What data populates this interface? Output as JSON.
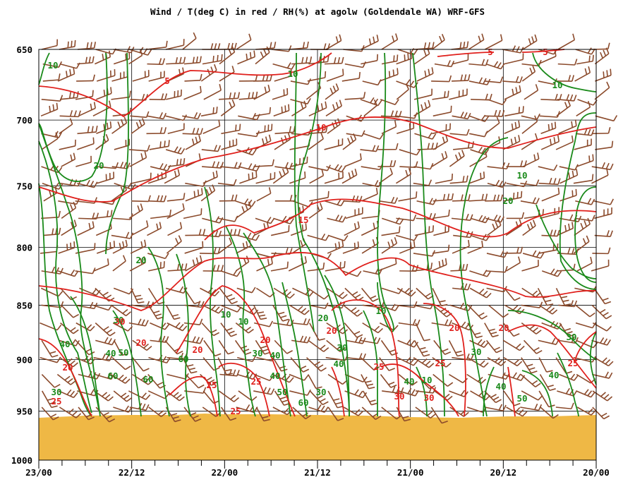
{
  "chart_data": {
    "type": "line",
    "title": "Wind / T(deg C) in red / RH(%) at agolw (Goldendale WA)  WRF-GFS",
    "y_axis": {
      "ticks": [
        "650",
        "700",
        "750",
        "800",
        "850",
        "900",
        "950",
        "1000"
      ],
      "values": [
        650,
        700,
        750,
        800,
        850,
        900,
        950,
        1000
      ],
      "scale": "log-pressure",
      "range": [
        650,
        1000
      ]
    },
    "x_axis": {
      "ticks": [
        "23/00",
        "22/12",
        "22/00",
        "21/12",
        "21/00",
        "20/12",
        "20/00"
      ],
      "gridlines": 6,
      "minor_ticks_per_interval": 4
    },
    "grid": true,
    "surface_fill_color": "#EFB845",
    "temperature": {
      "color": "#E0201C",
      "labels": [
        "5",
        "5",
        "5",
        "10",
        "15",
        "20",
        "20",
        "20",
        "20",
        "20",
        "20",
        "20",
        "25",
        "25",
        "25",
        "25",
        "25",
        "25",
        "25",
        "30",
        "30",
        "30"
      ]
    },
    "relative_humidity": {
      "color": "#1A8A1A",
      "labels": [
        "10",
        "10",
        "10",
        "10",
        "10",
        "10",
        "10",
        "10",
        "20",
        "20",
        "20",
        "20",
        "30",
        "30",
        "30",
        "30",
        "30",
        "30",
        "40",
        "40",
        "40",
        "40",
        "40",
        "40",
        "40",
        "50",
        "50",
        "50",
        "60",
        "60",
        "60",
        "60",
        "30",
        "40"
      ]
    },
    "wind_barbs": {
      "color": "#8B4A2B"
    }
  }
}
